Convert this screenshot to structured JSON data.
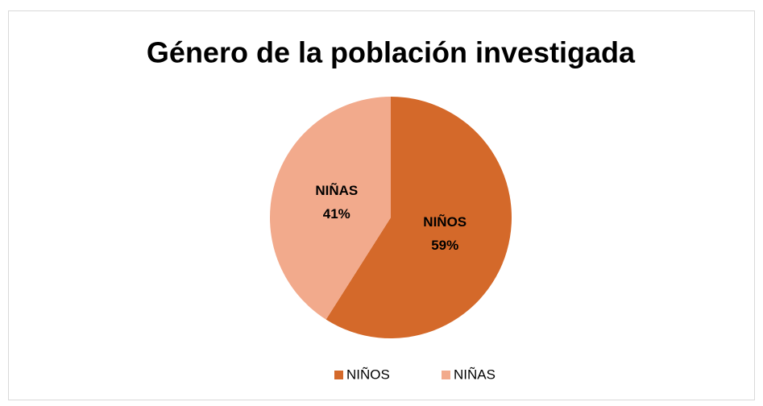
{
  "chart_data": {
    "type": "pie",
    "title": "Género de la población investigada",
    "categories": [
      "NIÑOS",
      "NIÑAS"
    ],
    "values": [
      59,
      41
    ],
    "value_labels": [
      "59%",
      "41%"
    ],
    "colors": [
      "#d4692a",
      "#f2aa8c"
    ],
    "legend": "bottom"
  }
}
